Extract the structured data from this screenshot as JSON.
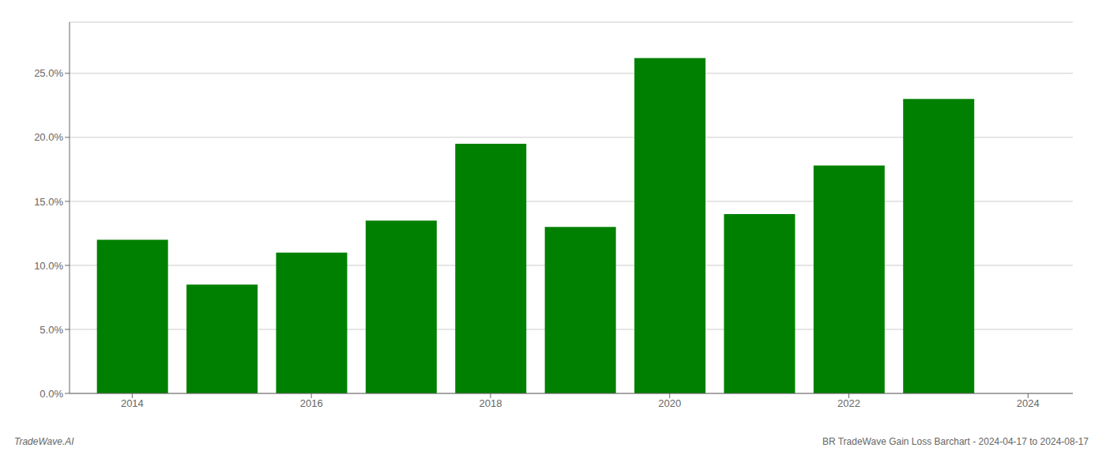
{
  "chart_data": {
    "type": "bar",
    "x": [
      2014,
      2015,
      2016,
      2017,
      2018,
      2019,
      2020,
      2021,
      2022,
      2023
    ],
    "values": [
      0.12,
      0.085,
      0.11,
      0.135,
      0.195,
      0.13,
      0.262,
      0.14,
      0.178,
      0.23
    ],
    "color": "#008000",
    "xlim": [
      2013.3,
      2024.5
    ],
    "xticks": [
      2014,
      2016,
      2018,
      2020,
      2022,
      2024
    ],
    "ylim": [
      0,
      0.29
    ],
    "yticks": [
      {
        "value": 0.0,
        "label": "0.0%"
      },
      {
        "value": 0.05,
        "label": "5.0%"
      },
      {
        "value": 0.1,
        "label": "10.0%"
      },
      {
        "value": 0.15,
        "label": "15.0%"
      },
      {
        "value": 0.2,
        "label": "20.0%"
      },
      {
        "value": 0.25,
        "label": "25.0%"
      }
    ],
    "grid": true,
    "annotations": [
      "TradeWave.AI",
      "BR TradeWave Gain Loss Barchart - 2024-04-17 to 2024-08-17"
    ]
  }
}
